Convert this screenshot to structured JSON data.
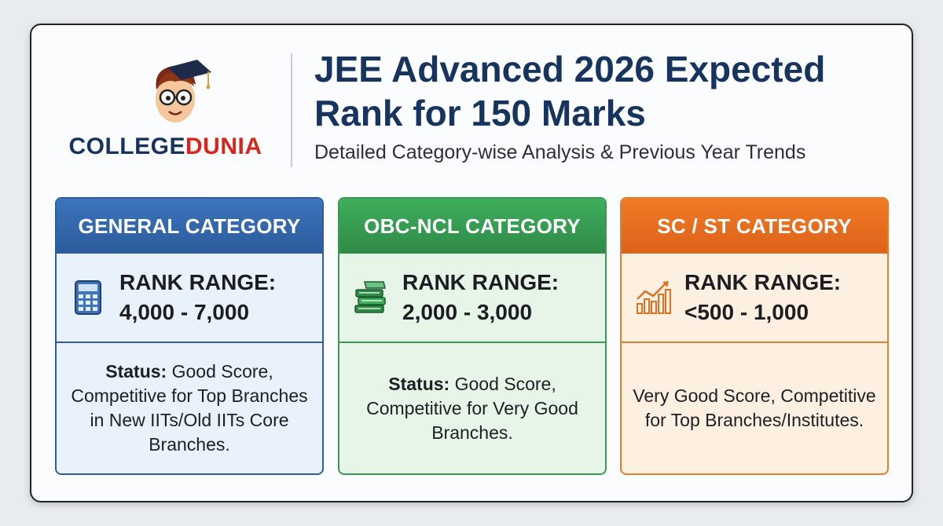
{
  "header": {
    "brand_part1": "COLLEGE",
    "brand_part2": "DUNIA",
    "title_line1": "JEE Advanced 2026 Expected",
    "title_line2": "Rank for 150 Marks",
    "subtitle": "Detailed Category-wise Analysis & Previous Year Trends"
  },
  "cards": [
    {
      "heading": "GENERAL CATEGORY",
      "icon": "calculator-icon",
      "rank_label": "RANK RANGE:",
      "rank_value": "4,000 - 7,000",
      "status_label": "Status:",
      "status_text": " Good Score, Competitive for Top Branches in New IITs/Old IITs Core Branches."
    },
    {
      "heading": "OBC-NCL CATEGORY",
      "icon": "books-icon",
      "rank_label": "RANK RANGE:",
      "rank_value": "2,000 - 3,000",
      "status_label": "Status:",
      "status_text": " Good Score, Competitive for Very Good Branches."
    },
    {
      "heading": "SC / ST CATEGORY",
      "icon": "bar-chart-trend-icon",
      "rank_label": "RANK RANGE:",
      "rank_value": "<500 - 1,000",
      "status_text": "Very Good Score, Competitive for Top Branches/Institutes."
    }
  ],
  "colors": {
    "navy": "#17345f",
    "brand_red": "#d8261c",
    "general_blue": "#2f5e9c",
    "obc_green": "#3a9a55",
    "scst_orange": "#e0802e"
  }
}
